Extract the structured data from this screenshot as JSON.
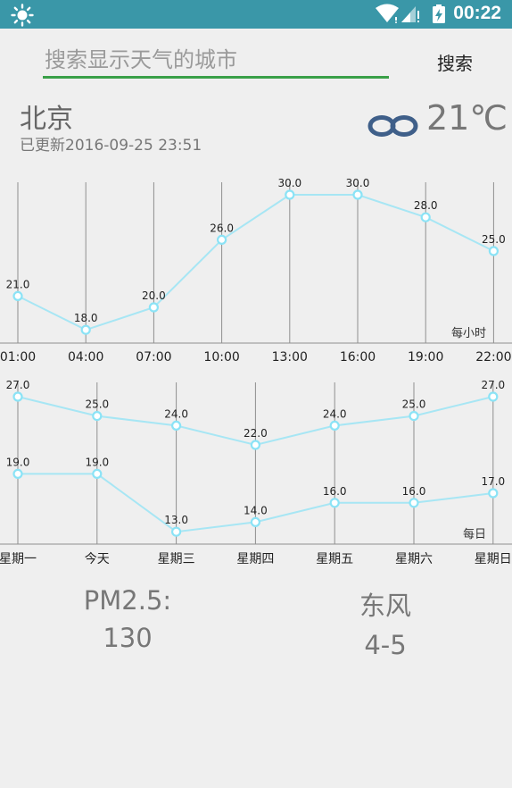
{
  "status_bar": {
    "time": "00:22"
  },
  "search": {
    "placeholder": "搜索显示天气的城市",
    "button_label": "搜索"
  },
  "current": {
    "city": "北京",
    "updated": "已更新2016-09-25 23:51",
    "temperature": "21℃",
    "icon": "cloudy-icon"
  },
  "colors": {
    "accent": "#3aa048",
    "status_bar": "#3a97a8",
    "series": "#9fe7f7"
  },
  "hourly_chart": {
    "label": "每小时",
    "categories": [
      "01:00",
      "04:00",
      "07:00",
      "10:00",
      "13:00",
      "16:00",
      "19:00",
      "22:00"
    ],
    "values": [
      21.0,
      18.0,
      20.0,
      26.0,
      30.0,
      30.0,
      28.0,
      25.0
    ]
  },
  "daily_chart": {
    "label": "每日",
    "categories": [
      "星期一",
      "今天",
      "星期三",
      "星期四",
      "星期五",
      "星期六",
      "星期日"
    ],
    "high": [
      27.0,
      25.0,
      24.0,
      22.0,
      24.0,
      25.0,
      27.0
    ],
    "low": [
      19.0,
      19.0,
      13.0,
      14.0,
      16.0,
      16.0,
      17.0
    ]
  },
  "chart_data": [
    {
      "type": "line",
      "x": [
        "01:00",
        "04:00",
        "07:00",
        "10:00",
        "13:00",
        "16:00",
        "19:00",
        "22:00"
      ],
      "series": [
        {
          "values": [
            21.0,
            18.0,
            20.0,
            26.0,
            30.0,
            30.0,
            28.0,
            25.0
          ]
        }
      ],
      "annotation": "每小时"
    },
    {
      "type": "line",
      "x": [
        "星期一",
        "今天",
        "星期三",
        "星期四",
        "星期五",
        "星期六",
        "星期日"
      ],
      "series": [
        {
          "values": [
            27.0,
            25.0,
            24.0,
            22.0,
            24.0,
            25.0,
            27.0
          ]
        },
        {
          "values": [
            19.0,
            19.0,
            13.0,
            14.0,
            16.0,
            16.0,
            17.0
          ]
        }
      ],
      "annotation": "每日"
    }
  ],
  "air": {
    "label": "PM2.5:",
    "value": "130"
  },
  "wind": {
    "direction": "东风",
    "level": "4-5"
  }
}
